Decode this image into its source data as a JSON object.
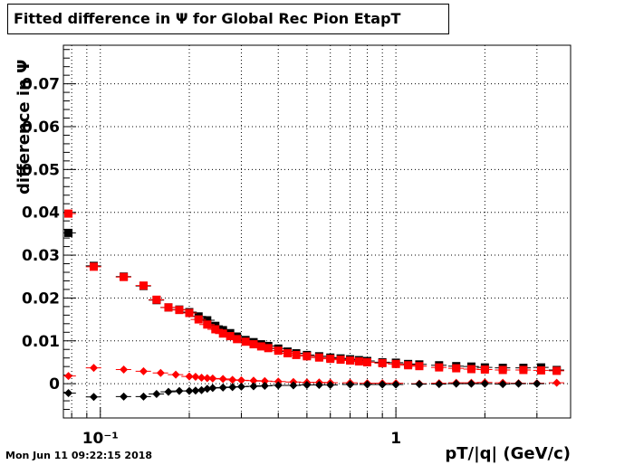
{
  "title": "Fitted difference in  Ψ  for Global Rec Pion EtapT",
  "timestamp": "Mon Jun 11 09:22:15 2018",
  "chart_data": {
    "type": "scatter",
    "title": "Fitted difference in  Ψ  for Global Rec Pion EtapT",
    "xlabel": "pT/|q| (GeV/c)",
    "ylabel": "difference in Ψ",
    "x_scale": "log",
    "xlim": [
      0.075,
      3.9
    ],
    "ylim": [
      -0.008,
      0.079
    ],
    "grid": true,
    "x_ticks": [
      {
        "value": 0.1,
        "label": "10⁻¹"
      },
      {
        "value": 1,
        "label": "1"
      }
    ],
    "y_ticks": [
      {
        "value": 0,
        "label": "0"
      },
      {
        "value": 0.01,
        "label": "0.01"
      },
      {
        "value": 0.02,
        "label": "0.02"
      },
      {
        "value": 0.03,
        "label": "0.03"
      },
      {
        "value": 0.04,
        "label": "0.04"
      },
      {
        "value": 0.05,
        "label": "0.05"
      },
      {
        "value": 0.06,
        "label": "0.06"
      },
      {
        "value": 0.07,
        "label": "0.07"
      }
    ],
    "colors": {
      "black": "#000000",
      "red": "#ff0000"
    },
    "series": [
      {
        "color": "#000000",
        "marker": "square",
        "x": [
          0.078,
          0.095,
          0.12,
          0.14,
          0.155,
          0.17,
          0.185,
          0.2,
          0.215,
          0.23,
          0.245,
          0.26,
          0.275,
          0.29,
          0.31,
          0.33,
          0.35,
          0.37,
          0.4,
          0.43,
          0.46,
          0.5,
          0.55,
          0.6,
          0.65,
          0.7,
          0.75,
          0.8,
          0.9,
          1.0,
          1.1,
          1.2,
          1.4,
          1.6,
          1.8,
          2.0,
          2.3,
          2.7,
          3.1,
          3.5
        ],
        "y": [
          0.0352,
          0.0275,
          0.025,
          0.0228,
          0.0195,
          0.0178,
          0.0173,
          0.0167,
          0.0157,
          0.0148,
          0.0135,
          0.0125,
          0.0118,
          0.011,
          0.0102,
          0.0097,
          0.0092,
          0.0088,
          0.0082,
          0.0075,
          0.0071,
          0.0067,
          0.0064,
          0.0061,
          0.0059,
          0.0057,
          0.0055,
          0.0053,
          0.005,
          0.0049,
          0.0046,
          0.0045,
          0.0043,
          0.0041,
          0.004,
          0.0038,
          0.0037,
          0.0037,
          0.0038,
          0.0032
        ]
      },
      {
        "color": "#ff0000",
        "marker": "square",
        "x": [
          0.078,
          0.095,
          0.12,
          0.14,
          0.155,
          0.17,
          0.185,
          0.2,
          0.215,
          0.23,
          0.245,
          0.26,
          0.275,
          0.29,
          0.31,
          0.33,
          0.35,
          0.37,
          0.4,
          0.43,
          0.46,
          0.5,
          0.55,
          0.6,
          0.65,
          0.7,
          0.75,
          0.8,
          0.9,
          1.0,
          1.1,
          1.2,
          1.4,
          1.6,
          1.8,
          2.0,
          2.3,
          2.7,
          3.1,
          3.5
        ],
        "y": [
          0.0397,
          0.0273,
          0.0249,
          0.0229,
          0.0196,
          0.0178,
          0.0172,
          0.0165,
          0.015,
          0.0138,
          0.0127,
          0.0117,
          0.0111,
          0.0104,
          0.0098,
          0.0092,
          0.0087,
          0.0083,
          0.0077,
          0.0071,
          0.0067,
          0.0064,
          0.0061,
          0.0058,
          0.0056,
          0.0054,
          0.0052,
          0.005,
          0.0048,
          0.0046,
          0.0043,
          0.0041,
          0.0038,
          0.0036,
          0.0034,
          0.0033,
          0.0032,
          0.0032,
          0.0031,
          0.003
        ]
      },
      {
        "color": "#ff0000",
        "marker": "diamond",
        "x": [
          0.078,
          0.095,
          0.12,
          0.14,
          0.16,
          0.18,
          0.2,
          0.21,
          0.22,
          0.23,
          0.24,
          0.26,
          0.28,
          0.3,
          0.33,
          0.36,
          0.4,
          0.45,
          0.5,
          0.55,
          0.6,
          0.7,
          0.8,
          0.9,
          1.0,
          1.2,
          1.4,
          1.6,
          1.8,
          2.0,
          2.3,
          2.6,
          3.0,
          3.5
        ],
        "y": [
          0.0018,
          0.0037,
          0.0033,
          0.0029,
          0.0025,
          0.0021,
          0.0017,
          0.0016,
          0.0014,
          0.0013,
          0.0012,
          0.0011,
          0.0009,
          0.0008,
          0.0007,
          0.0006,
          0.0005,
          0.0004,
          0.0003,
          0.0003,
          0.0002,
          0.0002,
          0.0001,
          0.0001,
          0.0001,
          0.0,
          0.0001,
          0.0002,
          0.0002,
          0.0003,
          0.0002,
          0.0001,
          0.0001,
          0.0002
        ]
      },
      {
        "color": "#000000",
        "marker": "diamond",
        "x": [
          0.078,
          0.095,
          0.12,
          0.14,
          0.155,
          0.17,
          0.185,
          0.2,
          0.21,
          0.22,
          0.23,
          0.24,
          0.26,
          0.28,
          0.3,
          0.33,
          0.36,
          0.4,
          0.45,
          0.5,
          0.55,
          0.6,
          0.7,
          0.8,
          0.9,
          1.0,
          1.2,
          1.4,
          1.6,
          1.8,
          2.0,
          2.3,
          2.6,
          3.0
        ],
        "y": [
          -0.0022,
          -0.0031,
          -0.003,
          -0.003,
          -0.0024,
          -0.0019,
          -0.0017,
          -0.0017,
          -0.0016,
          -0.0015,
          -0.0012,
          -0.001,
          -0.0009,
          -0.0008,
          -0.0007,
          -0.0006,
          -0.0005,
          -0.0004,
          -0.0004,
          -0.0003,
          -0.0003,
          -0.0003,
          -0.0002,
          -0.0002,
          -0.0002,
          -0.0002,
          -0.0001,
          -0.0001,
          0.0,
          0.0,
          0.0,
          -0.0001,
          0.0,
          0.0
        ]
      }
    ]
  }
}
